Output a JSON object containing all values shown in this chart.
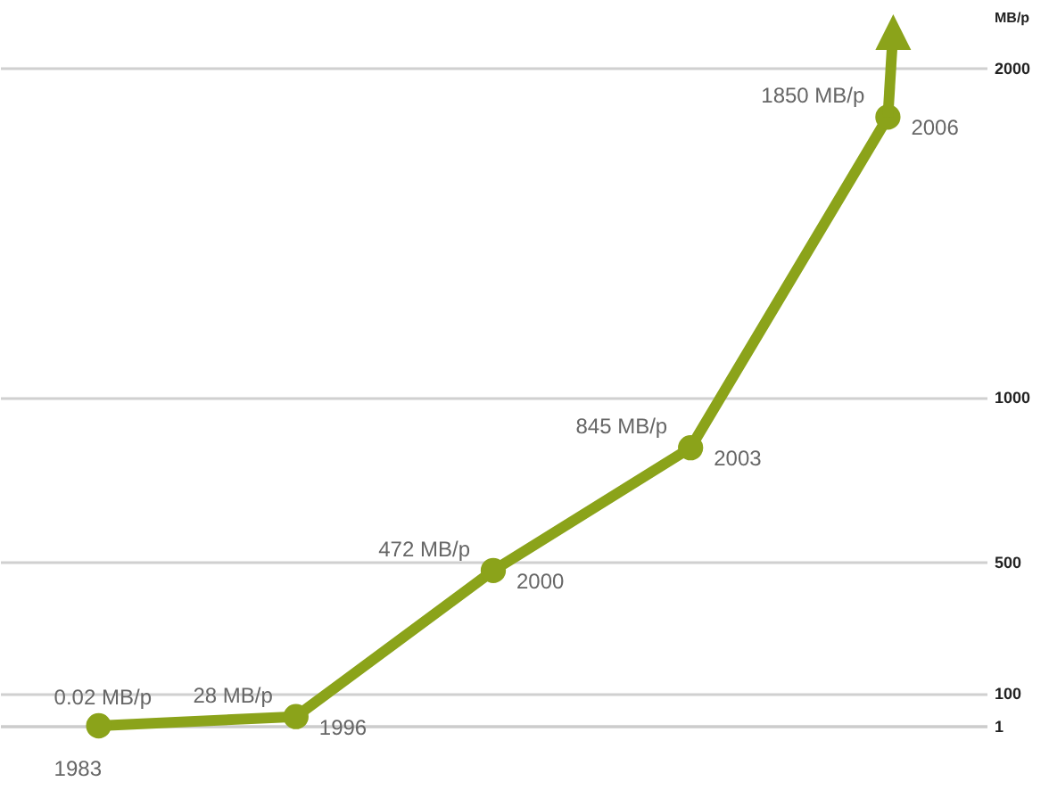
{
  "chart_data": {
    "type": "line",
    "categories": [
      null,
      null,
      null,
      null,
      null
    ],
    "series": [
      {
        "color": "#8ba31a",
        "values": [
          0.02,
          28,
          472,
          845,
          1850
        ],
        "value_labels": [
          "0.02 MB/p",
          "28 MB/p",
          "472 MB/p",
          "845 MB/p",
          "1850 MB/p"
        ]
      }
    ],
    "ylim": [
      0,
      2000
    ],
    "yticks": [
      1,
      100,
      500,
      1000,
      2000
    ],
    "ylabel": "MB/p",
    "grid": "y",
    "marker": "circle",
    "line_style": "solid",
    "tick_labels": "y",
    "annotations": [
      "1983",
      "1996",
      "2000",
      "2003",
      "2006"
    ]
  }
}
